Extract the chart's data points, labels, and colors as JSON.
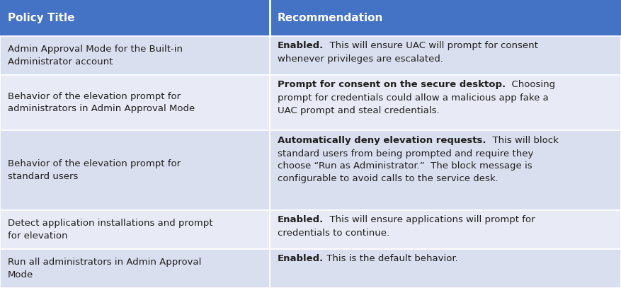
{
  "header": [
    "Policy Title",
    "Recommendation"
  ],
  "header_bg": "#4472C4",
  "header_text_color": "#FFFFFF",
  "row_bgs": [
    "#D9DFEE",
    "#E8EBF5",
    "#D9DFEE",
    "#E8EBF5",
    "#D9DFEE"
  ],
  "border_color": "#FFFFFF",
  "text_color": "#1F1F1F",
  "col_split": 0.435,
  "rows": [
    {
      "policy": "Admin Approval Mode for the Built-in\nAdministrator account",
      "rec_parts": [
        {
          "text": "Enabled.",
          "bold": true
        },
        {
          "text": "  This will ensure UAC will prompt for consent\nwhenever privileges are escalated.",
          "bold": false
        }
      ]
    },
    {
      "policy": "Behavior of the elevation prompt for\nadministrators in Admin Approval Mode",
      "rec_parts": [
        {
          "text": "Prompt for consent on the secure desktop.",
          "bold": true
        },
        {
          "text": "  Choosing\nprompt for credentials could allow a malicious app fake a\nUAC prompt and steal credentials.",
          "bold": false
        }
      ]
    },
    {
      "policy": "Behavior of the elevation prompt for\nstandard users",
      "rec_parts": [
        {
          "text": "Automatically deny elevation requests.",
          "bold": true
        },
        {
          "text": "  This will block\nstandard users from being prompted and require they\nchoose “Run as Administrator.”  The block message is\nconfigurable to avoid calls to the service desk.",
          "bold": false
        }
      ]
    },
    {
      "policy": "Detect application installations and prompt\nfor elevation",
      "rec_parts": [
        {
          "text": "Enabled.",
          "bold": true
        },
        {
          "text": "  This will ensure applications will prompt for\ncredentials to continue.",
          "bold": false
        }
      ]
    },
    {
      "policy": "Run all administrators in Admin Approval\nMode",
      "rec_parts": [
        {
          "text": "Enabled.",
          "bold": true
        },
        {
          "text": " This is the default behavior.",
          "bold": false
        }
      ]
    }
  ],
  "font_size": 9.5,
  "header_font_size": 11,
  "row_heights_rel": [
    2.1,
    3.0,
    4.3,
    2.1,
    2.1
  ],
  "fig_width": 8.77,
  "fig_height": 4.07,
  "dpi": 100
}
